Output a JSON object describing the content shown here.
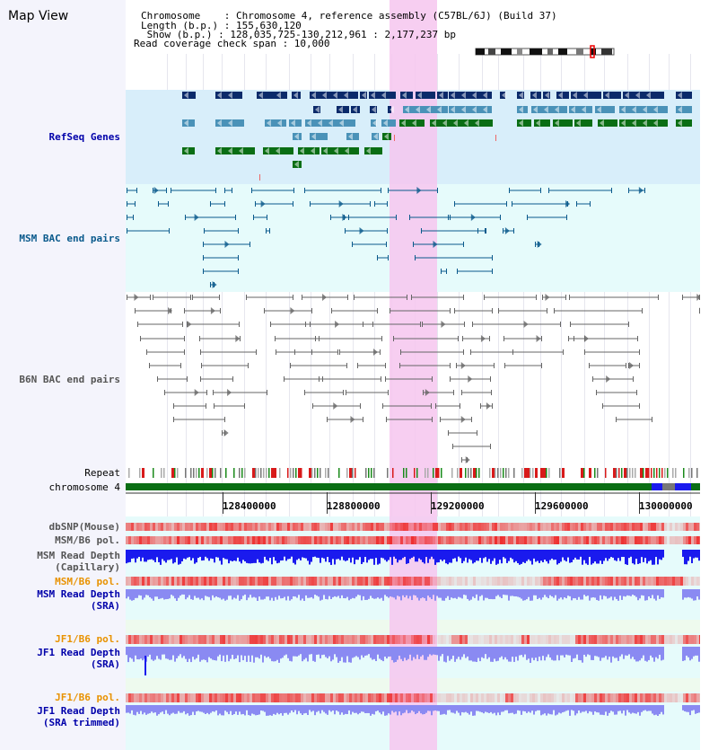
{
  "title": "Map View",
  "info": {
    "chromosome": "Chromosome    : Chromosome 4, reference assembly (C57BL/6J) (Build 37)",
    "length": "Length (b.p.) : 155,630,120",
    "show": " Show (b.p.) : 128,035,725-130,212,961 : 2,177,237 bp",
    "coverage": "Read coverage check span : 10,000"
  },
  "tracks": {
    "refseq": "RefSeq Genes",
    "msm_bac": "MSM BAC end pairs",
    "b6n_bac": "B6N BAC end pairs",
    "repeat": "Repeat",
    "chromosome": "chromosome 4",
    "dbsnp": "dbSNP(Mouse)",
    "msm_b6_pol": "MSM/B6 pol.",
    "msm_depth_cap_1": "MSM Read Depth",
    "msm_depth_cap_2": "(Capillary)",
    "msm_b6_pol2": "MSM/B6 pol.",
    "msm_depth_sra_1": "MSM Read Depth",
    "msm_depth_sra_2": "(SRA)",
    "jf1_b6_pol": "JF1/B6 pol.",
    "jf1_depth_1": "JF1 Read Depth",
    "jf1_depth_2": "(SRA)",
    "jf1_b6_pol2": "JF1/B6 pol.",
    "jf1_trim_1": "JF1 Read Depth",
    "jf1_trim_2": "(SRA trimmed)"
  },
  "axis": {
    "ticks": [
      "128400000",
      "128800000",
      "129200000",
      "129600000",
      "130000000"
    ]
  },
  "colors": {
    "refseq_bg": "#d8eefa",
    "bac_bg": "#e6fbfb",
    "highlight": "#f6c6ee",
    "msm_label": "#0a5a8c",
    "b6n_label": "#555555",
    "dark_blue": "#0b2a6a",
    "mid_blue": "#4a92b8",
    "green": "#0a6e14",
    "orange_label": "#e89200",
    "blue_label": "#0000aa",
    "pol_red": "#ee3333",
    "depth_blue": "#1a1aee",
    "depth_light": "#8a8af2"
  }
}
